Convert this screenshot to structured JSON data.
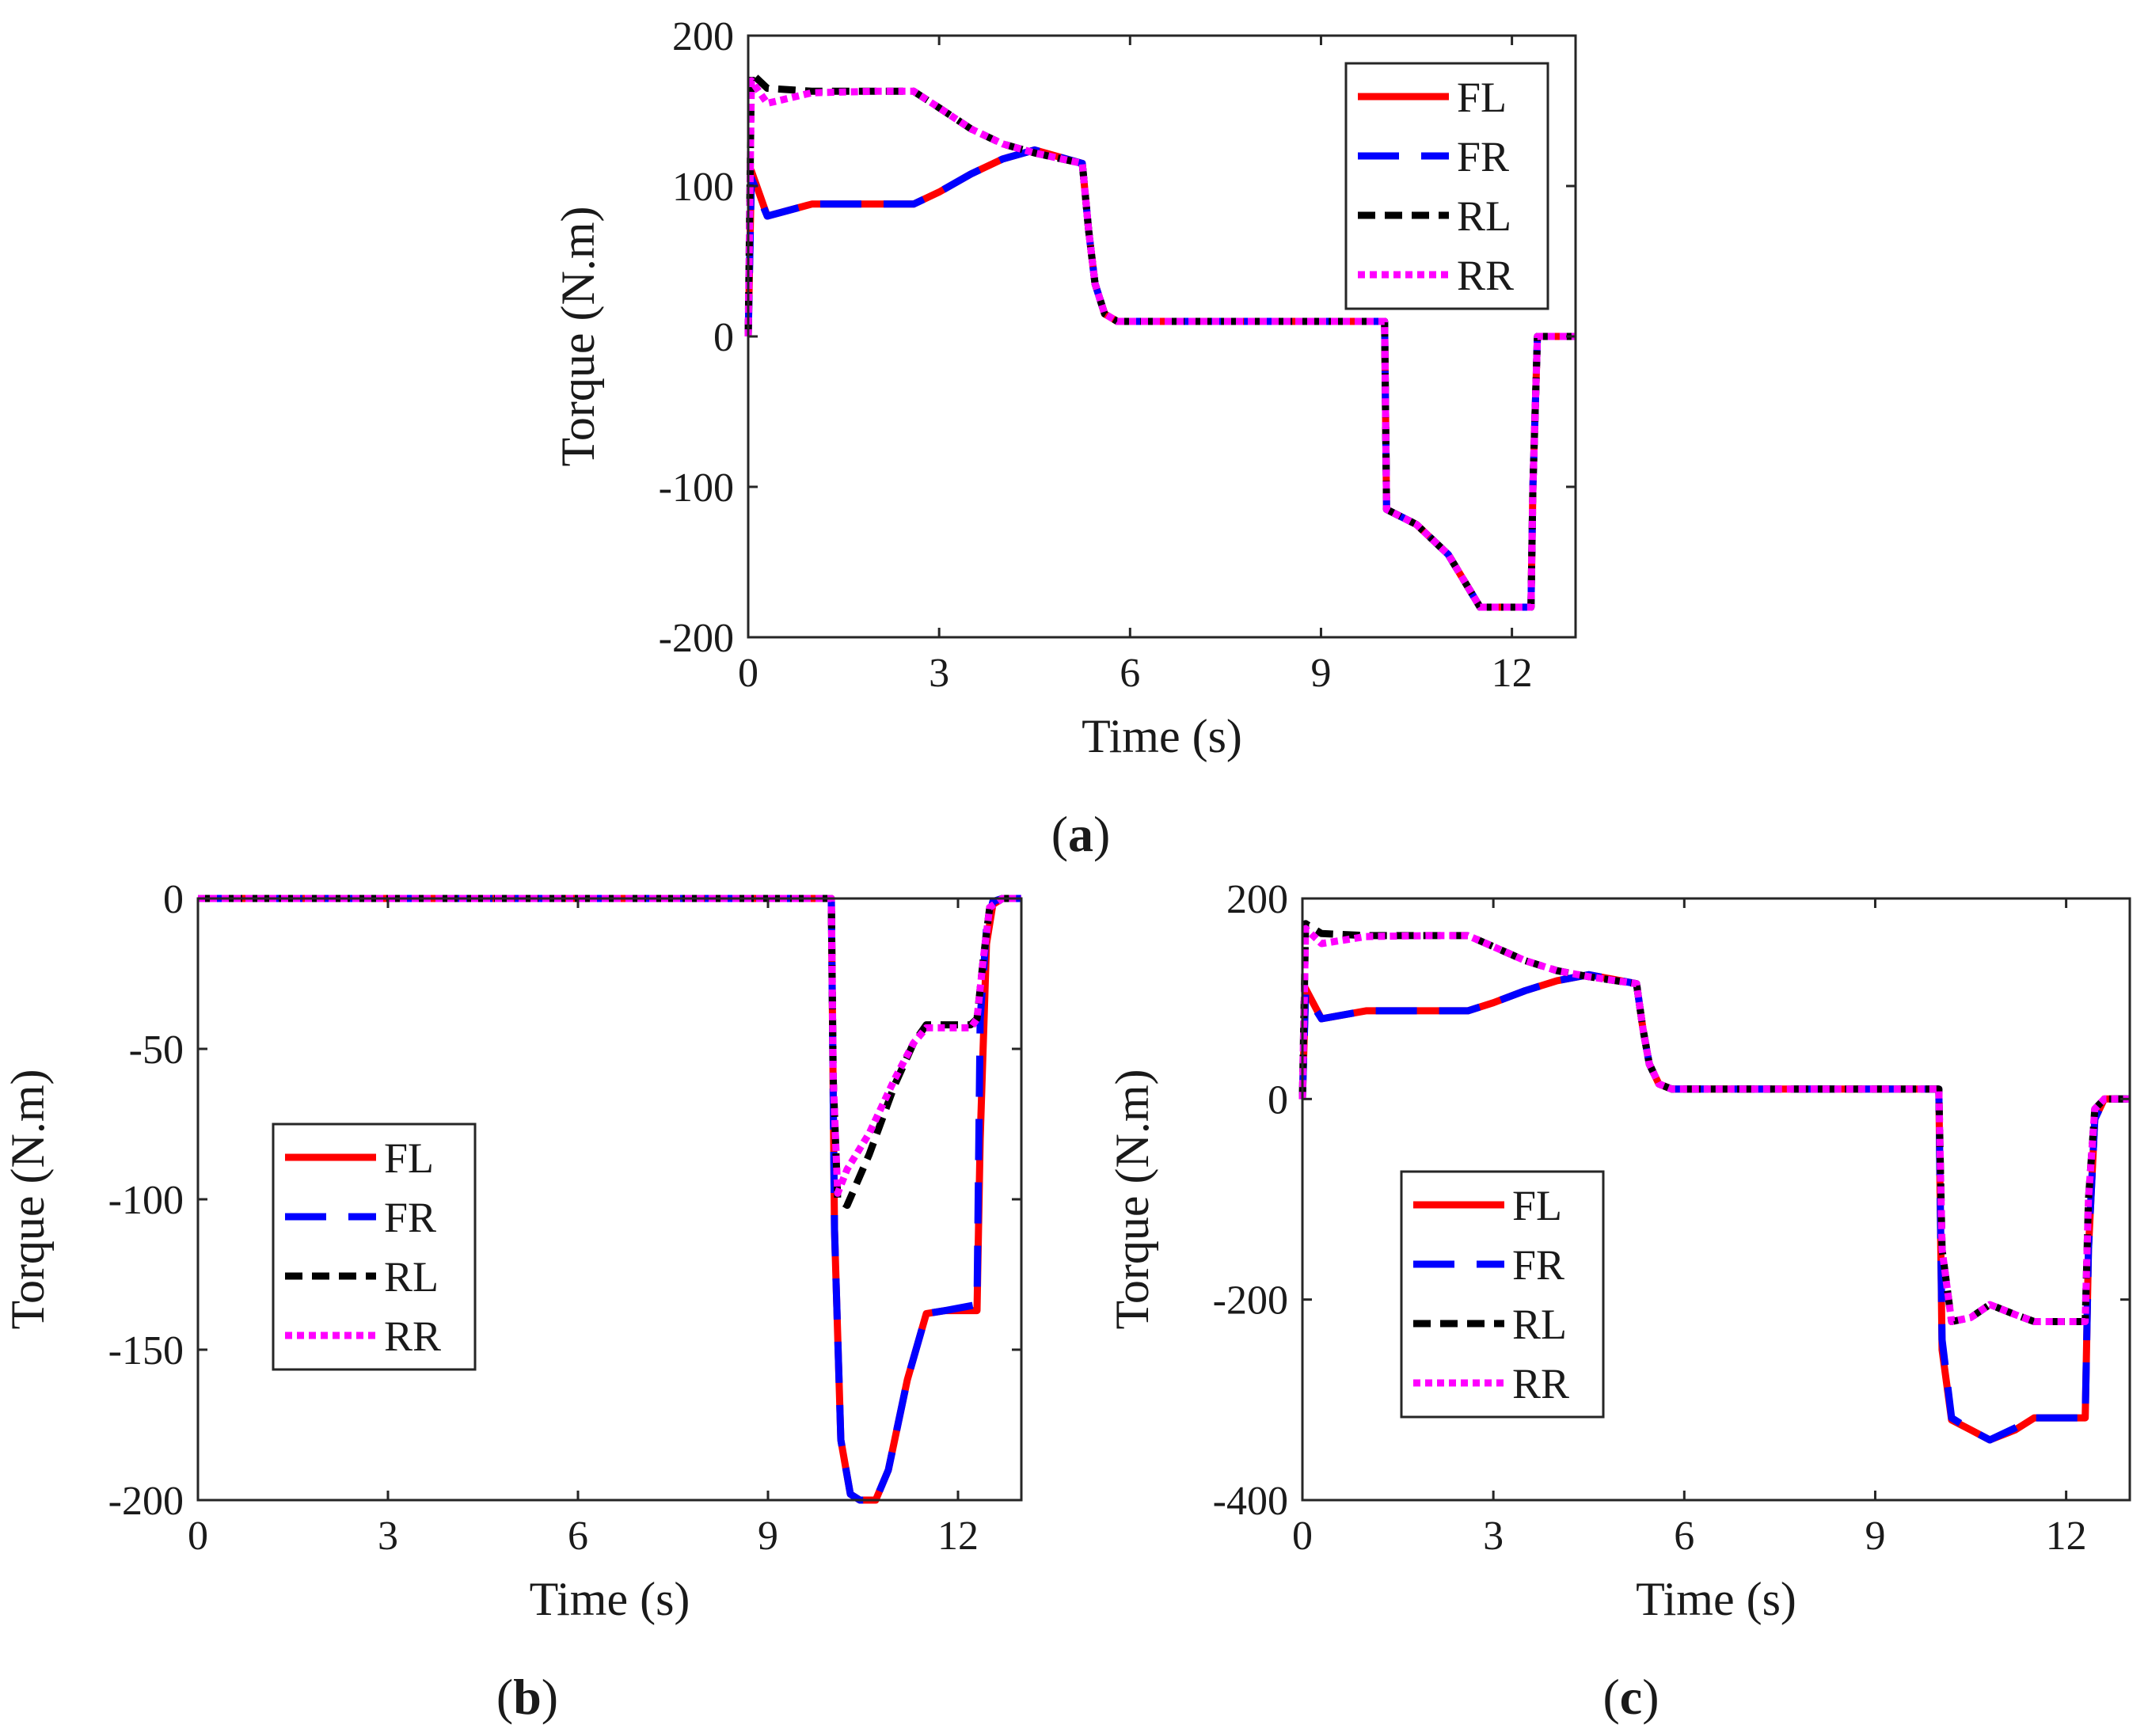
{
  "legend_entries": [
    "FL",
    "FR",
    "RL",
    "RR"
  ],
  "colors": {
    "FL": "#ff0000",
    "FR": "#0000ff",
    "RL": "#000000",
    "RR": "#ff00ff"
  },
  "chart_data": [
    {
      "id": "a",
      "type": "line",
      "caption_open": "(",
      "caption_letter": "a",
      "caption_close": ")",
      "xlabel": "Time (s)",
      "ylabel": "Torque (N.m)",
      "xlim": [
        0,
        13
      ],
      "ylim": [
        -200,
        200
      ],
      "xticks": [
        0,
        3,
        6,
        9,
        12
      ],
      "xtick_labels": [
        "0",
        "3",
        "6",
        "9",
        "12"
      ],
      "yticks": [
        -200,
        -100,
        0,
        100,
        200
      ],
      "ytick_labels": [
        "-200",
        "-100",
        "0",
        "100",
        "200"
      ],
      "legend_position": "top-right",
      "series": [
        {
          "name": "FL",
          "x": [
            0,
            0.05,
            0.3,
            1.0,
            1.5,
            2.0,
            2.6,
            3.0,
            3.5,
            4.0,
            4.5,
            5.25,
            5.35,
            5.45,
            5.6,
            5.8,
            6.0,
            8.0,
            10.0,
            10.03,
            10.5,
            11.0,
            11.5,
            12.3,
            12.33,
            12.4,
            13
          ],
          "y": [
            0,
            110,
            80,
            88,
            88,
            88,
            88,
            96,
            108,
            118,
            124,
            115,
            70,
            35,
            15,
            10,
            10,
            10,
            10,
            -115,
            -125,
            -145,
            -180,
            -180,
            -100,
            0,
            0
          ]
        },
        {
          "name": "FR",
          "x": [
            0,
            0.05,
            0.3,
            1.0,
            1.5,
            2.0,
            2.6,
            3.0,
            3.5,
            4.0,
            4.5,
            5.25,
            5.35,
            5.45,
            5.6,
            5.8,
            6.0,
            8.0,
            10.0,
            10.03,
            10.5,
            11.0,
            11.5,
            12.3,
            12.33,
            12.4,
            13
          ],
          "y": [
            0,
            105,
            80,
            88,
            88,
            88,
            88,
            96,
            108,
            118,
            124,
            115,
            70,
            35,
            15,
            10,
            10,
            10,
            10,
            -115,
            -125,
            -145,
            -180,
            -180,
            -100,
            0,
            0
          ]
        },
        {
          "name": "RL",
          "x": [
            0,
            0.05,
            0.3,
            1.0,
            2.0,
            2.6,
            3.0,
            3.5,
            4.0,
            4.5,
            5.25,
            5.35,
            5.45,
            5.6,
            5.8,
            6.0,
            8.0,
            10.0,
            10.03,
            10.5,
            11.0,
            11.5,
            12.3,
            12.33,
            12.4,
            13
          ],
          "y": [
            0,
            175,
            165,
            163,
            163,
            163,
            152,
            138,
            128,
            122,
            115,
            70,
            35,
            15,
            10,
            10,
            10,
            10,
            -115,
            -125,
            -145,
            -180,
            -180,
            -100,
            0,
            0
          ]
        },
        {
          "name": "RR",
          "x": [
            0,
            0.05,
            0.3,
            1.0,
            2.0,
            2.6,
            3.0,
            3.5,
            4.0,
            4.5,
            5.25,
            5.35,
            5.45,
            5.6,
            5.8,
            6.0,
            8.0,
            10.0,
            10.03,
            10.5,
            11.0,
            11.5,
            12.3,
            12.33,
            12.4,
            13
          ],
          "y": [
            0,
            170,
            155,
            162,
            163,
            163,
            152,
            138,
            128,
            122,
            115,
            70,
            35,
            15,
            10,
            10,
            10,
            10,
            -115,
            -125,
            -145,
            -180,
            -180,
            -100,
            0,
            0
          ]
        }
      ]
    },
    {
      "id": "b",
      "type": "line",
      "caption_open": "(",
      "caption_letter": "b",
      "caption_close": ")",
      "xlabel": "Time (s)",
      "ylabel": "Torque (N.m)",
      "xlim": [
        0,
        13
      ],
      "ylim": [
        -200,
        0
      ],
      "xticks": [
        0,
        3,
        6,
        9,
        12
      ],
      "xtick_labels": [
        "0",
        "3",
        "6",
        "9",
        "12"
      ],
      "yticks": [
        -200,
        -150,
        -100,
        -50,
        0
      ],
      "ytick_labels": [
        "-200",
        "-150",
        "-100",
        "-50",
        "0"
      ],
      "legend_position": "center-left",
      "series": [
        {
          "name": "FL",
          "x": [
            0,
            10.0,
            10.05,
            10.15,
            10.3,
            10.45,
            10.7,
            10.9,
            11.2,
            11.5,
            11.8,
            12.3,
            12.35,
            12.45,
            12.55,
            12.7,
            13
          ],
          "y": [
            0,
            0,
            -110,
            -180,
            -198,
            -200,
            -200,
            -190,
            -160,
            -138,
            -137,
            -137,
            -80,
            -15,
            -2,
            0,
            0
          ]
        },
        {
          "name": "FR",
          "x": [
            0,
            10.0,
            10.05,
            10.15,
            10.3,
            10.45,
            10.7,
            10.9,
            11.2,
            11.5,
            11.8,
            12.3,
            12.35,
            12.45,
            12.55,
            12.7,
            13
          ],
          "y": [
            0,
            0,
            -110,
            -180,
            -198,
            -200,
            -200,
            -190,
            -160,
            -138,
            -137,
            -135,
            -40,
            -10,
            -1,
            0,
            0
          ]
        },
        {
          "name": "RL",
          "x": [
            0,
            10.0,
            10.03,
            10.1,
            10.25,
            10.6,
            11.0,
            11.3,
            11.5,
            12.2,
            12.3,
            12.4,
            12.5,
            12.7,
            13
          ],
          "y": [
            0,
            0,
            -60,
            -100,
            -102,
            -85,
            -62,
            -48,
            -42,
            -42,
            -40,
            -20,
            -3,
            0,
            0
          ]
        },
        {
          "name": "RR",
          "x": [
            0,
            10.0,
            10.03,
            10.1,
            10.25,
            10.6,
            11.0,
            11.3,
            11.5,
            12.2,
            12.3,
            12.4,
            12.5,
            12.7,
            13
          ],
          "y": [
            0,
            0,
            -60,
            -98,
            -90,
            -78,
            -60,
            -48,
            -43,
            -43,
            -40,
            -20,
            -3,
            0,
            0
          ]
        }
      ]
    },
    {
      "id": "c",
      "type": "line",
      "caption_open": "(",
      "caption_letter": "c",
      "caption_close": ")",
      "xlabel": "Time (s)",
      "ylabel": "Torque (N.m)",
      "xlim": [
        0,
        13
      ],
      "ylim": [
        -400,
        200
      ],
      "xticks": [
        0,
        3,
        6,
        9,
        12
      ],
      "xtick_labels": [
        "0",
        "3",
        "6",
        "9",
        "12"
      ],
      "yticks": [
        -400,
        -200,
        0,
        200
      ],
      "ytick_labels": [
        "-400",
        "-200",
        "0",
        "200"
      ],
      "legend_position": "bottom-left",
      "series": [
        {
          "name": "FL",
          "x": [
            0,
            0.05,
            0.3,
            1.0,
            1.5,
            2.0,
            2.6,
            3.0,
            3.5,
            4.0,
            4.5,
            5.25,
            5.35,
            5.45,
            5.6,
            5.8,
            6.0,
            8.0,
            10.0,
            10.05,
            10.2,
            10.5,
            10.8,
            11.2,
            11.5,
            12.3,
            12.35,
            12.45,
            12.6,
            13
          ],
          "y": [
            0,
            110,
            80,
            88,
            88,
            88,
            88,
            96,
            108,
            118,
            124,
            115,
            70,
            35,
            15,
            10,
            10,
            10,
            10,
            -250,
            -320,
            -330,
            -340,
            -330,
            -318,
            -318,
            -150,
            -20,
            0,
            0
          ]
        },
        {
          "name": "FR",
          "x": [
            0,
            0.05,
            0.3,
            1.0,
            1.5,
            2.0,
            2.6,
            3.0,
            3.5,
            4.0,
            4.5,
            5.25,
            5.35,
            5.45,
            5.6,
            5.8,
            6.0,
            8.0,
            10.0,
            10.05,
            10.2,
            10.5,
            10.8,
            11.2,
            11.5,
            12.3,
            12.35,
            12.45,
            12.6,
            13
          ],
          "y": [
            0,
            105,
            80,
            88,
            88,
            88,
            88,
            96,
            108,
            118,
            124,
            115,
            70,
            35,
            15,
            10,
            10,
            10,
            10,
            -240,
            -318,
            -330,
            -340,
            -328,
            -318,
            -318,
            -150,
            -20,
            0,
            0
          ]
        },
        {
          "name": "RL",
          "x": [
            0,
            0.05,
            0.3,
            1.0,
            2.0,
            2.6,
            3.0,
            3.5,
            4.0,
            4.5,
            5.25,
            5.35,
            5.45,
            5.6,
            5.8,
            6.0,
            8.0,
            10.0,
            10.05,
            10.2,
            10.5,
            10.8,
            11.2,
            11.5,
            12.3,
            12.35,
            12.45,
            12.6,
            13
          ],
          "y": [
            0,
            175,
            165,
            163,
            163,
            163,
            152,
            138,
            128,
            122,
            115,
            70,
            35,
            15,
            10,
            10,
            10,
            10,
            -150,
            -222,
            -218,
            -205,
            -215,
            -222,
            -222,
            -100,
            -10,
            0,
            0
          ]
        },
        {
          "name": "RR",
          "x": [
            0,
            0.05,
            0.3,
            1.0,
            2.0,
            2.6,
            3.0,
            3.5,
            4.0,
            4.5,
            5.25,
            5.35,
            5.45,
            5.6,
            5.8,
            6.0,
            8.0,
            10.0,
            10.05,
            10.2,
            10.5,
            10.8,
            11.2,
            11.5,
            12.3,
            12.35,
            12.45,
            12.6,
            13
          ],
          "y": [
            0,
            170,
            155,
            162,
            163,
            163,
            152,
            138,
            128,
            122,
            115,
            70,
            35,
            15,
            10,
            10,
            10,
            10,
            -150,
            -222,
            -218,
            -205,
            -215,
            -222,
            -222,
            -100,
            -10,
            0,
            0
          ]
        }
      ]
    }
  ]
}
